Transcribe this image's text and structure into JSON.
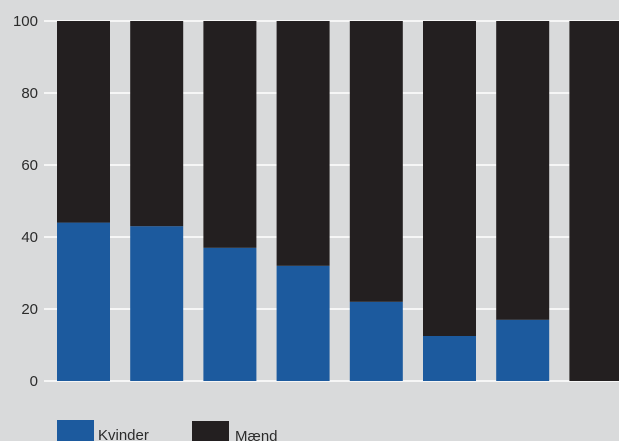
{
  "chart_data": {
    "type": "bar",
    "stacked": true,
    "categories": [
      "",
      "",
      "",
      "",
      "",
      "",
      "",
      ""
    ],
    "series": [
      {
        "name": "Kvinder",
        "color": "#1c5a9e",
        "values": [
          44,
          43,
          37,
          32,
          22,
          12.5,
          17,
          0
        ]
      },
      {
        "name": "Mænd",
        "color": "#231f20",
        "values": [
          56,
          57,
          63,
          68,
          78,
          87.5,
          83,
          100
        ]
      }
    ],
    "ylim": [
      0,
      100
    ],
    "yticks": [
      "0",
      "20",
      "40",
      "60",
      "80",
      "100"
    ],
    "grid": true,
    "legend_position": "bottom-left",
    "title": "",
    "xlabel": "",
    "ylabel": ""
  }
}
